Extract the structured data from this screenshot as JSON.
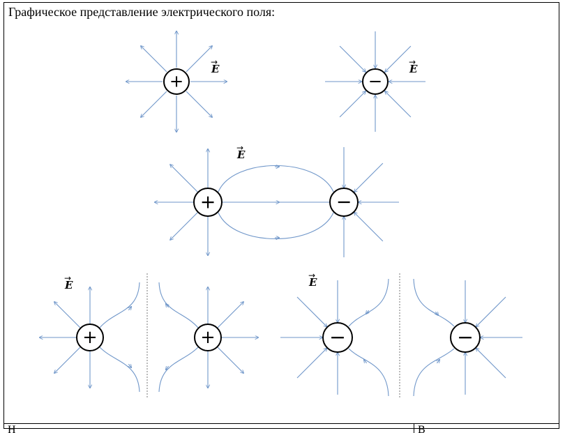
{
  "heading": "Графическое представление электрического поля:",
  "field_label": "E",
  "field_vector_symbol": "→",
  "charge_symbols": {
    "positive": "+",
    "negative": "−"
  },
  "colors": {
    "line": "#6f96c9",
    "circle_stroke": "#000000",
    "text": "#000000",
    "divider": "#555555"
  },
  "bottom_row": {
    "left_text": "Н",
    "right_text": "В"
  }
}
